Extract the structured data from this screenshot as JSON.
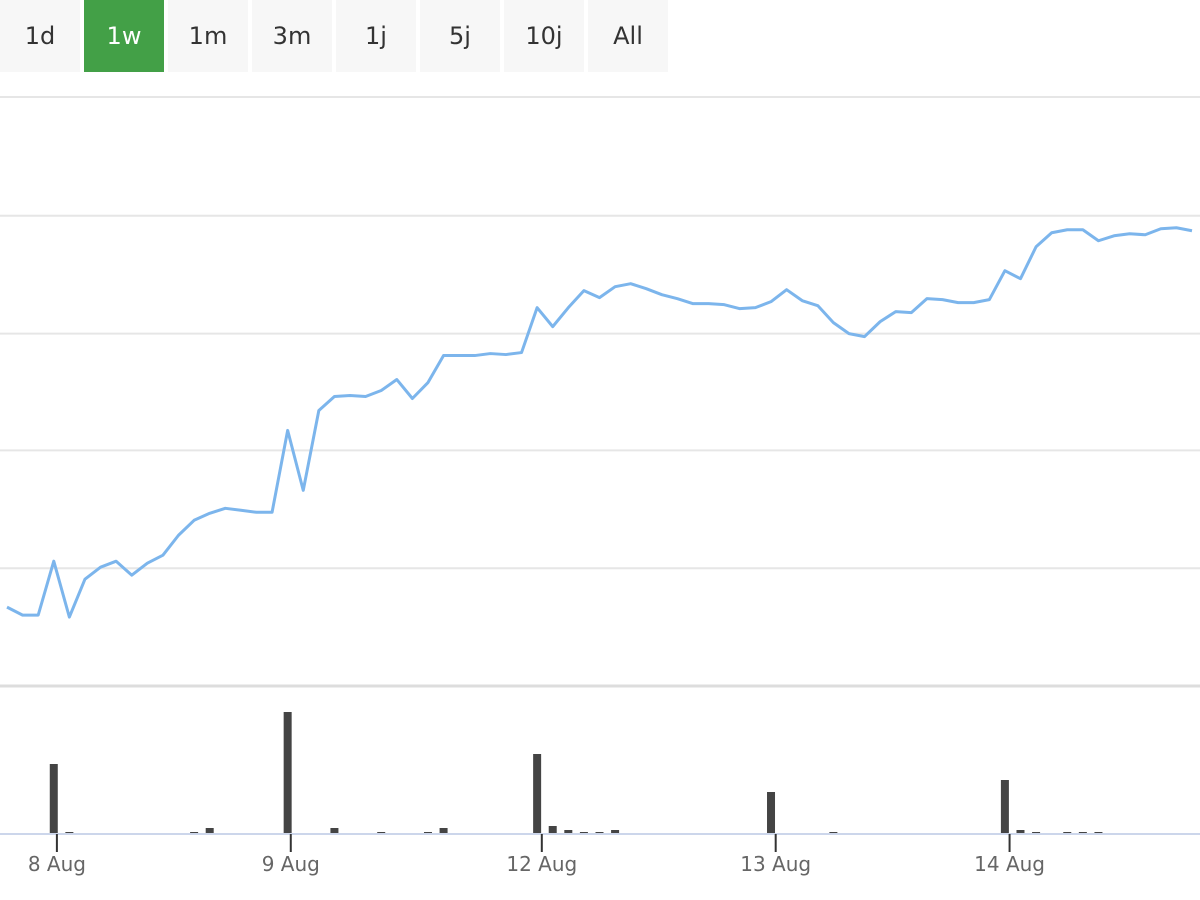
{
  "range_selector": {
    "buttons": [
      "1d",
      "1w",
      "1m",
      "3m",
      "1j",
      "5j",
      "10j",
      "All"
    ],
    "selected": 1,
    "selected_color": "#43a047"
  },
  "chart_data": [
    {
      "type": "line",
      "xlim": [
        0,
        76
      ],
      "ylim": [
        0,
        590
      ],
      "ygrid": [
        118,
        236,
        353,
        471,
        590
      ],
      "grid": true,
      "x": [
        0,
        1,
        2,
        3,
        4,
        5,
        6,
        7,
        8,
        9,
        10,
        11,
        12,
        13,
        14,
        15,
        16,
        17,
        18,
        19,
        20,
        21,
        22,
        23,
        24,
        25,
        26,
        27,
        28,
        29,
        30,
        31,
        32,
        33,
        34,
        35,
        36,
        37,
        38,
        39,
        40,
        41,
        42,
        43,
        44,
        45,
        46,
        47,
        48,
        49,
        50,
        51,
        52,
        53,
        54,
        55,
        56,
        57,
        58,
        59,
        60,
        61,
        62,
        63,
        64,
        65,
        66,
        67,
        68,
        69,
        70,
        71,
        72,
        73,
        74,
        75,
        76
      ],
      "series": [
        {
          "color": "#7cb5ec",
          "values": [
            79,
            71,
            71,
            125,
            69,
            107,
            119,
            125,
            111,
            123,
            131,
            151,
            166,
            173,
            178,
            176,
            174,
            174,
            256,
            196,
            276,
            290,
            291,
            290,
            296,
            307,
            288,
            304,
            331,
            331,
            331,
            333,
            332,
            334,
            379,
            360,
            379,
            396,
            389,
            400,
            403,
            398,
            392,
            388,
            383,
            383,
            382,
            378,
            379,
            385,
            397,
            386,
            381,
            364,
            353,
            350,
            365,
            375,
            374,
            388,
            387,
            384,
            384,
            387,
            416,
            408,
            440,
            454,
            457,
            457,
            446,
            451,
            453,
            452,
            458,
            459,
            456
          ]
        }
      ]
    },
    {
      "type": "bar",
      "xlim": [
        0,
        76
      ],
      "ylim": [
        0,
        148
      ],
      "color": "#444444",
      "x": [
        3,
        4,
        12,
        13,
        18,
        21,
        24,
        27,
        28,
        34,
        35,
        36,
        37,
        38,
        39,
        49,
        53,
        64,
        65,
        66,
        68,
        69,
        70
      ],
      "values": [
        70,
        2,
        2,
        6,
        122,
        6,
        2,
        2,
        6,
        80,
        8,
        4,
        2,
        2,
        4,
        42,
        2,
        54,
        4,
        2,
        2,
        2,
        2
      ],
      "xticks": [
        {
          "value": 3.2,
          "label": "8 Aug"
        },
        {
          "value": 18.2,
          "label": "9 Aug"
        },
        {
          "value": 34.3,
          "label": "12 Aug"
        },
        {
          "value": 49.3,
          "label": "13 Aug"
        },
        {
          "value": 64.3,
          "label": "14 Aug"
        }
      ]
    }
  ]
}
